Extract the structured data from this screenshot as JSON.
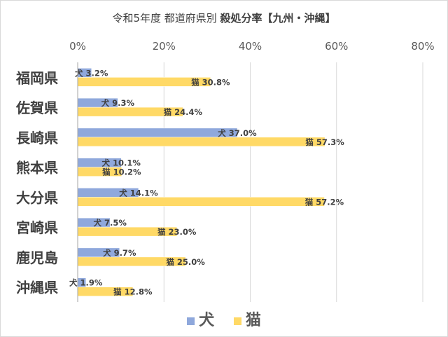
{
  "chart_data": {
    "type": "bar",
    "orientation": "horizontal",
    "title_main": "令和5年度 都道府県別 ",
    "title_bold": "殺処分率【九州・沖縄】",
    "categories": [
      "福岡県",
      "佐賀県",
      "長崎県",
      "熊本県",
      "大分県",
      "宮崎県",
      "鹿児島",
      "沖縄県"
    ],
    "series": [
      {
        "name": "犬",
        "color": "#8fa8dc",
        "values": [
          3.2,
          9.3,
          37.0,
          10.1,
          14.1,
          7.5,
          9.7,
          1.9
        ],
        "labels": [
          "3.2%",
          "9.3%",
          "37.0%",
          "10.1%",
          "14.1%",
          "7.5%",
          "9.7%",
          "1.9%"
        ]
      },
      {
        "name": "猫",
        "color": "#ffd966",
        "values": [
          30.8,
          24.4,
          57.3,
          10.2,
          57.2,
          23.0,
          25.0,
          12.8
        ],
        "labels": [
          "30.8%",
          "24.4%",
          "57.3%",
          "10.2%",
          "57.2%",
          "23.0%",
          "25.0%",
          "12.8%"
        ]
      }
    ],
    "x_ticks": [
      0,
      20,
      40,
      60,
      80
    ],
    "x_tick_labels": [
      "0%",
      "20%",
      "40%",
      "60%",
      "80%"
    ],
    "xlim": [
      0,
      80
    ],
    "grid": true,
    "legend_position": "bottom",
    "gridline_color": "#d9d9d9",
    "border_color": "#a6a6a6"
  }
}
